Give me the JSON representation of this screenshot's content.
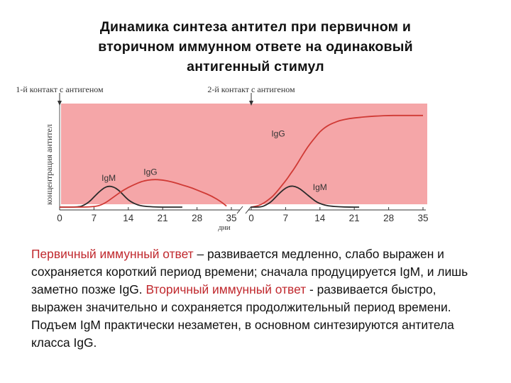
{
  "title_lines": [
    "Динамика синтеза антител при первичном и",
    "вторичном иммунном ответе на одинаковый",
    "антигенный стимул"
  ],
  "colors": {
    "plot_background": "#f5a6a8",
    "igm_line": "#2b2b2b",
    "igg_line": "#d03a35",
    "accent_text": "#c0282d"
  },
  "chart_data": {
    "type": "line",
    "title": "Динамика синтеза антител при первичном и вторичном иммунном ответе на одинаковый антигенный стимул",
    "xlabel": "дни",
    "ylabel": "концентрация антител",
    "grid": false,
    "panels": [
      {
        "annotation": "1-й контакт с антигеном",
        "annotation_day": 0,
        "xlim": [
          0,
          35
        ],
        "ticks": [
          0,
          7,
          14,
          21,
          28,
          35
        ],
        "ylim": [
          0,
          100
        ],
        "series": [
          {
            "name": "IgM",
            "x": [
              0,
              4,
              5,
              6,
              7,
              8,
              9,
              10,
              11,
              12,
              13,
              14,
              15,
              16,
              17,
              18,
              20,
              22,
              25
            ],
            "y": [
              0,
              0,
              2,
              5,
              10,
              15,
              19,
              21,
              20,
              17,
              12,
              7,
              4,
              2,
              1,
              0.5,
              0,
              0,
              0
            ]
          },
          {
            "name": "IgG",
            "x": [
              0,
              7,
              9,
              11,
              13,
              15,
              17,
              19,
              21,
              23,
              25,
              27,
              29,
              31,
              33,
              34
            ],
            "y": [
              0,
              0,
              3,
              10,
              17,
              22,
              26,
              27.5,
              27,
              25,
              22,
              19,
              15,
              11,
              5,
              1
            ]
          }
        ]
      },
      {
        "annotation": "2-й контакт с антигеном",
        "annotation_day": 0,
        "xlim": [
          0,
          35
        ],
        "ticks": [
          0,
          7,
          14,
          21,
          28,
          35
        ],
        "ylim": [
          0,
          100
        ],
        "series": [
          {
            "name": "IgG",
            "x": [
              0,
              2,
              4,
              5,
              6,
              7,
              8,
              9,
              10,
              11,
              12,
              13,
              14,
              15,
              16,
              17,
              18,
              20,
              22,
              24,
              26,
              28,
              30,
              32,
              35
            ],
            "y": [
              0,
              2,
              9,
              14,
              20,
              26,
              33,
              40,
              48,
              56,
              63,
              69,
              75,
              79,
              82,
              84,
              86,
              88,
              89,
              90,
              90.5,
              91,
              91,
              91,
              91
            ]
          },
          {
            "name": "IgM",
            "x": [
              0,
              2,
              3,
              4,
              5,
              6,
              7,
              8,
              9,
              10,
              11,
              12,
              13,
              14,
              15,
              16,
              18,
              20,
              22
            ],
            "y": [
              0,
              0,
              2,
              5,
              10,
              15,
              19,
              21,
              20.5,
              18,
              14,
              10,
              6,
              3.5,
              2,
              1,
              0.3,
              0,
              0
            ]
          }
        ]
      }
    ]
  },
  "caption": {
    "seg1": "Первичный иммунный ответ",
    "seg2": " – развивается медленно, слабо выражен и сохраняется короткий период времени; сначала продуцируется IgM, и лишь заметно позже  IgG. ",
    "seg3": "Вторичный иммунный ответ",
    "seg4": "  - развивается быстро, выражен значительно и сохраняется продолжительный период времени. Подъем IgM практически незаметен, в основном синтезируются антитела класса IgG."
  }
}
